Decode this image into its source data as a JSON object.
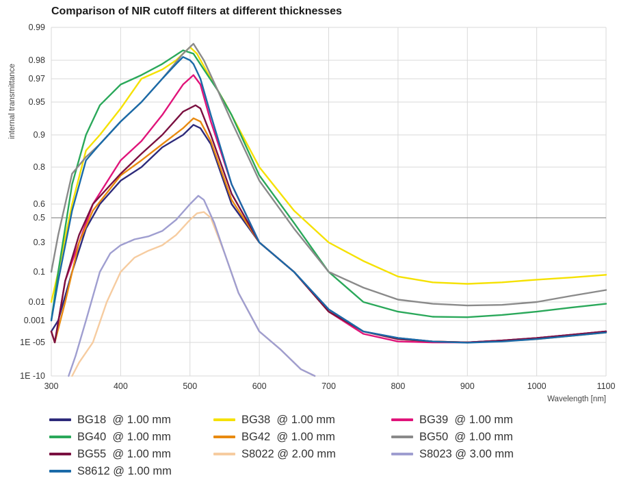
{
  "chart_data": {
    "type": "line",
    "title": "Comparison of NIR cutoff filters at different thicknesses",
    "xlabel": "Wavelength  [nm]",
    "ylabel": "internal transmittance",
    "xlim": [
      300,
      1100
    ],
    "x_ticks": [
      "300",
      "400",
      "500",
      "600",
      "700",
      "800",
      "900",
      "1000",
      "1100"
    ],
    "y_scale": "nonlinear (labelled tick positions)",
    "y_ticks": [
      "0.99",
      "0.98",
      "0.97",
      "0.95",
      "0.9",
      "0.8",
      "0.6",
      "0.5",
      "0.3",
      "0.1",
      "0.01",
      "0.001",
      "1E -05",
      "1E -10"
    ],
    "y_tick_values": [
      0.99,
      0.98,
      0.97,
      0.95,
      0.9,
      0.8,
      0.6,
      0.5,
      0.3,
      0.1,
      0.01,
      0.001,
      1e-05,
      1e-10
    ],
    "grid": true,
    "legend_position": "bottom",
    "series": [
      {
        "name": "BG18  @ 1.00 mm",
        "color": "#2d2a7a",
        "x": [
          300,
          310,
          330,
          350,
          370,
          400,
          430,
          460,
          490,
          505,
          515,
          530,
          560,
          600,
          650,
          700,
          750,
          800,
          850,
          900,
          950,
          1000,
          1050,
          1100
        ],
        "y": [
          0.0001,
          0.001,
          0.1,
          0.4,
          0.6,
          0.72,
          0.8,
          0.86,
          0.9,
          0.915,
          0.91,
          0.87,
          0.6,
          0.3,
          0.1,
          0.004,
          0.0001,
          2.5e-05,
          1.2e-05,
          1e-05,
          1.5e-05,
          2.5e-05,
          5e-05,
          0.0001
        ]
      },
      {
        "name": "BG38  @ 1.00 mm",
        "color": "#f5e100",
        "x": [
          300,
          310,
          330,
          350,
          370,
          400,
          430,
          460,
          480,
          500,
          510,
          530,
          550,
          600,
          650,
          700,
          750,
          800,
          850,
          900,
          950,
          1000,
          1050,
          1100
        ],
        "y": [
          0.01,
          0.1,
          0.6,
          0.85,
          0.9,
          0.94,
          0.97,
          0.975,
          0.98,
          0.984,
          0.982,
          0.97,
          0.95,
          0.8,
          0.55,
          0.3,
          0.15,
          0.07,
          0.045,
          0.04,
          0.045,
          0.055,
          0.065,
          0.08
        ]
      },
      {
        "name": "BG39  @ 1.00 mm",
        "color": "#e0147a",
        "x": [
          300,
          305,
          320,
          340,
          360,
          400,
          430,
          460,
          490,
          505,
          515,
          530,
          560,
          600,
          650,
          700,
          750,
          800,
          850,
          900,
          950,
          1000,
          1050,
          1100
        ],
        "y": [
          0.0001,
          1e-05,
          0.05,
          0.3,
          0.6,
          0.82,
          0.88,
          0.93,
          0.965,
          0.972,
          0.965,
          0.92,
          0.7,
          0.3,
          0.1,
          0.003,
          6e-05,
          1.2e-05,
          1e-05,
          1e-05,
          1.5e-05,
          2.5e-05,
          5e-05,
          0.0001
        ]
      },
      {
        "name": "BG40  @ 1.00 mm",
        "color": "#2aa85a",
        "x": [
          300,
          310,
          330,
          350,
          370,
          400,
          430,
          460,
          490,
          505,
          520,
          540,
          560,
          600,
          650,
          700,
          750,
          800,
          850,
          900,
          950,
          1000,
          1050,
          1100
        ],
        "y": [
          0.001,
          0.1,
          0.7,
          0.9,
          0.945,
          0.965,
          0.972,
          0.978,
          0.983,
          0.982,
          0.975,
          0.96,
          0.93,
          0.75,
          0.45,
          0.1,
          0.01,
          0.003,
          0.0016,
          0.0015,
          0.002,
          0.003,
          0.005,
          0.008
        ]
      },
      {
        "name": "BG42  @ 1.00 mm",
        "color": "#e88a10",
        "x": [
          300,
          305,
          320,
          340,
          360,
          400,
          430,
          460,
          490,
          505,
          515,
          530,
          560,
          600,
          650,
          700,
          750,
          800,
          850,
          900,
          950,
          1000,
          1050,
          1100
        ],
        "y": [
          0.0001,
          1e-05,
          0.01,
          0.3,
          0.55,
          0.75,
          0.82,
          0.87,
          0.91,
          0.925,
          0.92,
          0.88,
          0.62,
          0.3,
          0.1,
          0.003,
          0.0001,
          2e-05,
          1.2e-05,
          1e-05,
          1.3e-05,
          2e-05,
          4e-05,
          8e-05
        ]
      },
      {
        "name": "BG50  @ 1.00 mm",
        "color": "#8a8a8a",
        "x": [
          300,
          310,
          330,
          350,
          370,
          400,
          430,
          460,
          490,
          505,
          520,
          540,
          560,
          600,
          650,
          700,
          750,
          800,
          850,
          900,
          950,
          1000,
          1050,
          1100
        ],
        "y": [
          0.1,
          0.35,
          0.76,
          0.83,
          0.87,
          0.92,
          0.95,
          0.97,
          0.982,
          0.985,
          0.98,
          0.96,
          0.92,
          0.72,
          0.4,
          0.1,
          0.03,
          0.012,
          0.008,
          0.0065,
          0.007,
          0.01,
          0.016,
          0.025
        ]
      },
      {
        "name": "BG55  @ 1.00 mm",
        "color": "#7a1040",
        "x": [
          300,
          305,
          320,
          340,
          360,
          400,
          430,
          460,
          490,
          508,
          515,
          530,
          560,
          600,
          650,
          700,
          750,
          800,
          850,
          900,
          950,
          1000,
          1050,
          1100
        ],
        "y": [
          0.0001,
          1e-05,
          0.05,
          0.35,
          0.6,
          0.76,
          0.84,
          0.9,
          0.935,
          0.945,
          0.94,
          0.9,
          0.65,
          0.3,
          0.1,
          0.003,
          0.0001,
          2e-05,
          1.2e-05,
          1e-05,
          1.5e-05,
          2.5e-05,
          5e-05,
          0.0001
        ]
      },
      {
        "name": "S8022 @ 2.00 mm",
        "color": "#f6ccA0",
        "x": [
          330,
          340,
          360,
          380,
          400,
          420,
          440,
          460,
          480,
          500,
          510,
          520,
          530,
          550,
          570,
          600,
          630,
          660,
          680
        ],
        "y": [
          1e-10,
          1e-08,
          1e-05,
          0.01,
          0.1,
          0.17,
          0.22,
          0.27,
          0.35,
          0.48,
          0.53,
          0.54,
          0.5,
          0.2,
          0.02,
          0.0001,
          1e-06,
          1e-09,
          1e-10
        ]
      },
      {
        "name": "S8023 @ 3.00 mm",
        "color": "#9f9ed0",
        "x": [
          325,
          335,
          350,
          370,
          385,
          400,
          420,
          440,
          460,
          480,
          500,
          512,
          520,
          535,
          550,
          570,
          600,
          630,
          660,
          680
        ],
        "y": [
          1e-10,
          1e-07,
          0.001,
          0.1,
          0.2,
          0.27,
          0.32,
          0.34,
          0.38,
          0.48,
          0.6,
          0.64,
          0.62,
          0.45,
          0.2,
          0.02,
          0.0001,
          1e-06,
          1e-09,
          1e-10
        ]
      },
      {
        "name": "S8612 @ 1.00 mm",
        "color": "#1a6aa8",
        "x": [
          300,
          310,
          330,
          350,
          370,
          400,
          430,
          460,
          480,
          490,
          500,
          505,
          515,
          530,
          560,
          600,
          650,
          700,
          750,
          800,
          850,
          900,
          950,
          1000,
          1050,
          1100
        ],
        "y": [
          0.001,
          0.05,
          0.55,
          0.82,
          0.87,
          0.92,
          0.95,
          0.97,
          0.978,
          0.981,
          0.98,
          0.978,
          0.97,
          0.93,
          0.7,
          0.3,
          0.1,
          0.004,
          0.0001,
          2.5e-05,
          1.2e-05,
          9e-06,
          1.2e-05,
          2e-05,
          4e-05,
          8e-05
        ]
      }
    ]
  }
}
